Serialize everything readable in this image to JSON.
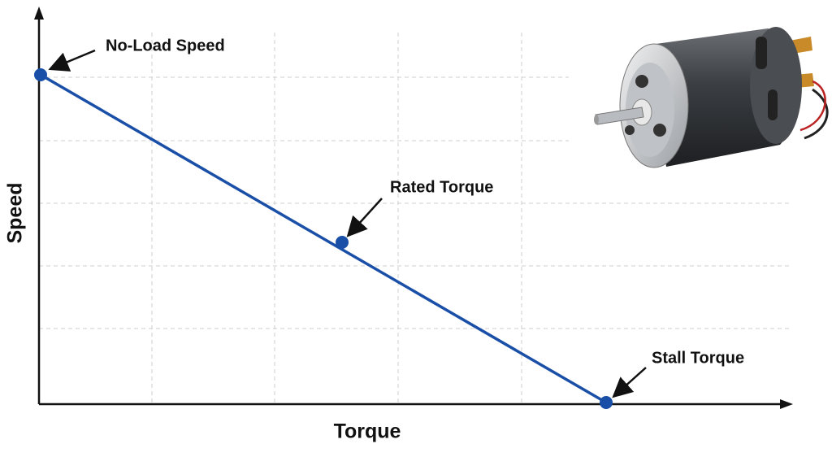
{
  "axes": {
    "y_label": "Speed",
    "x_label": "Torque"
  },
  "annotations": [
    {
      "label": "No-Load Speed"
    },
    {
      "label": "Rated Torque"
    },
    {
      "label": "Stall Torque"
    }
  ]
}
